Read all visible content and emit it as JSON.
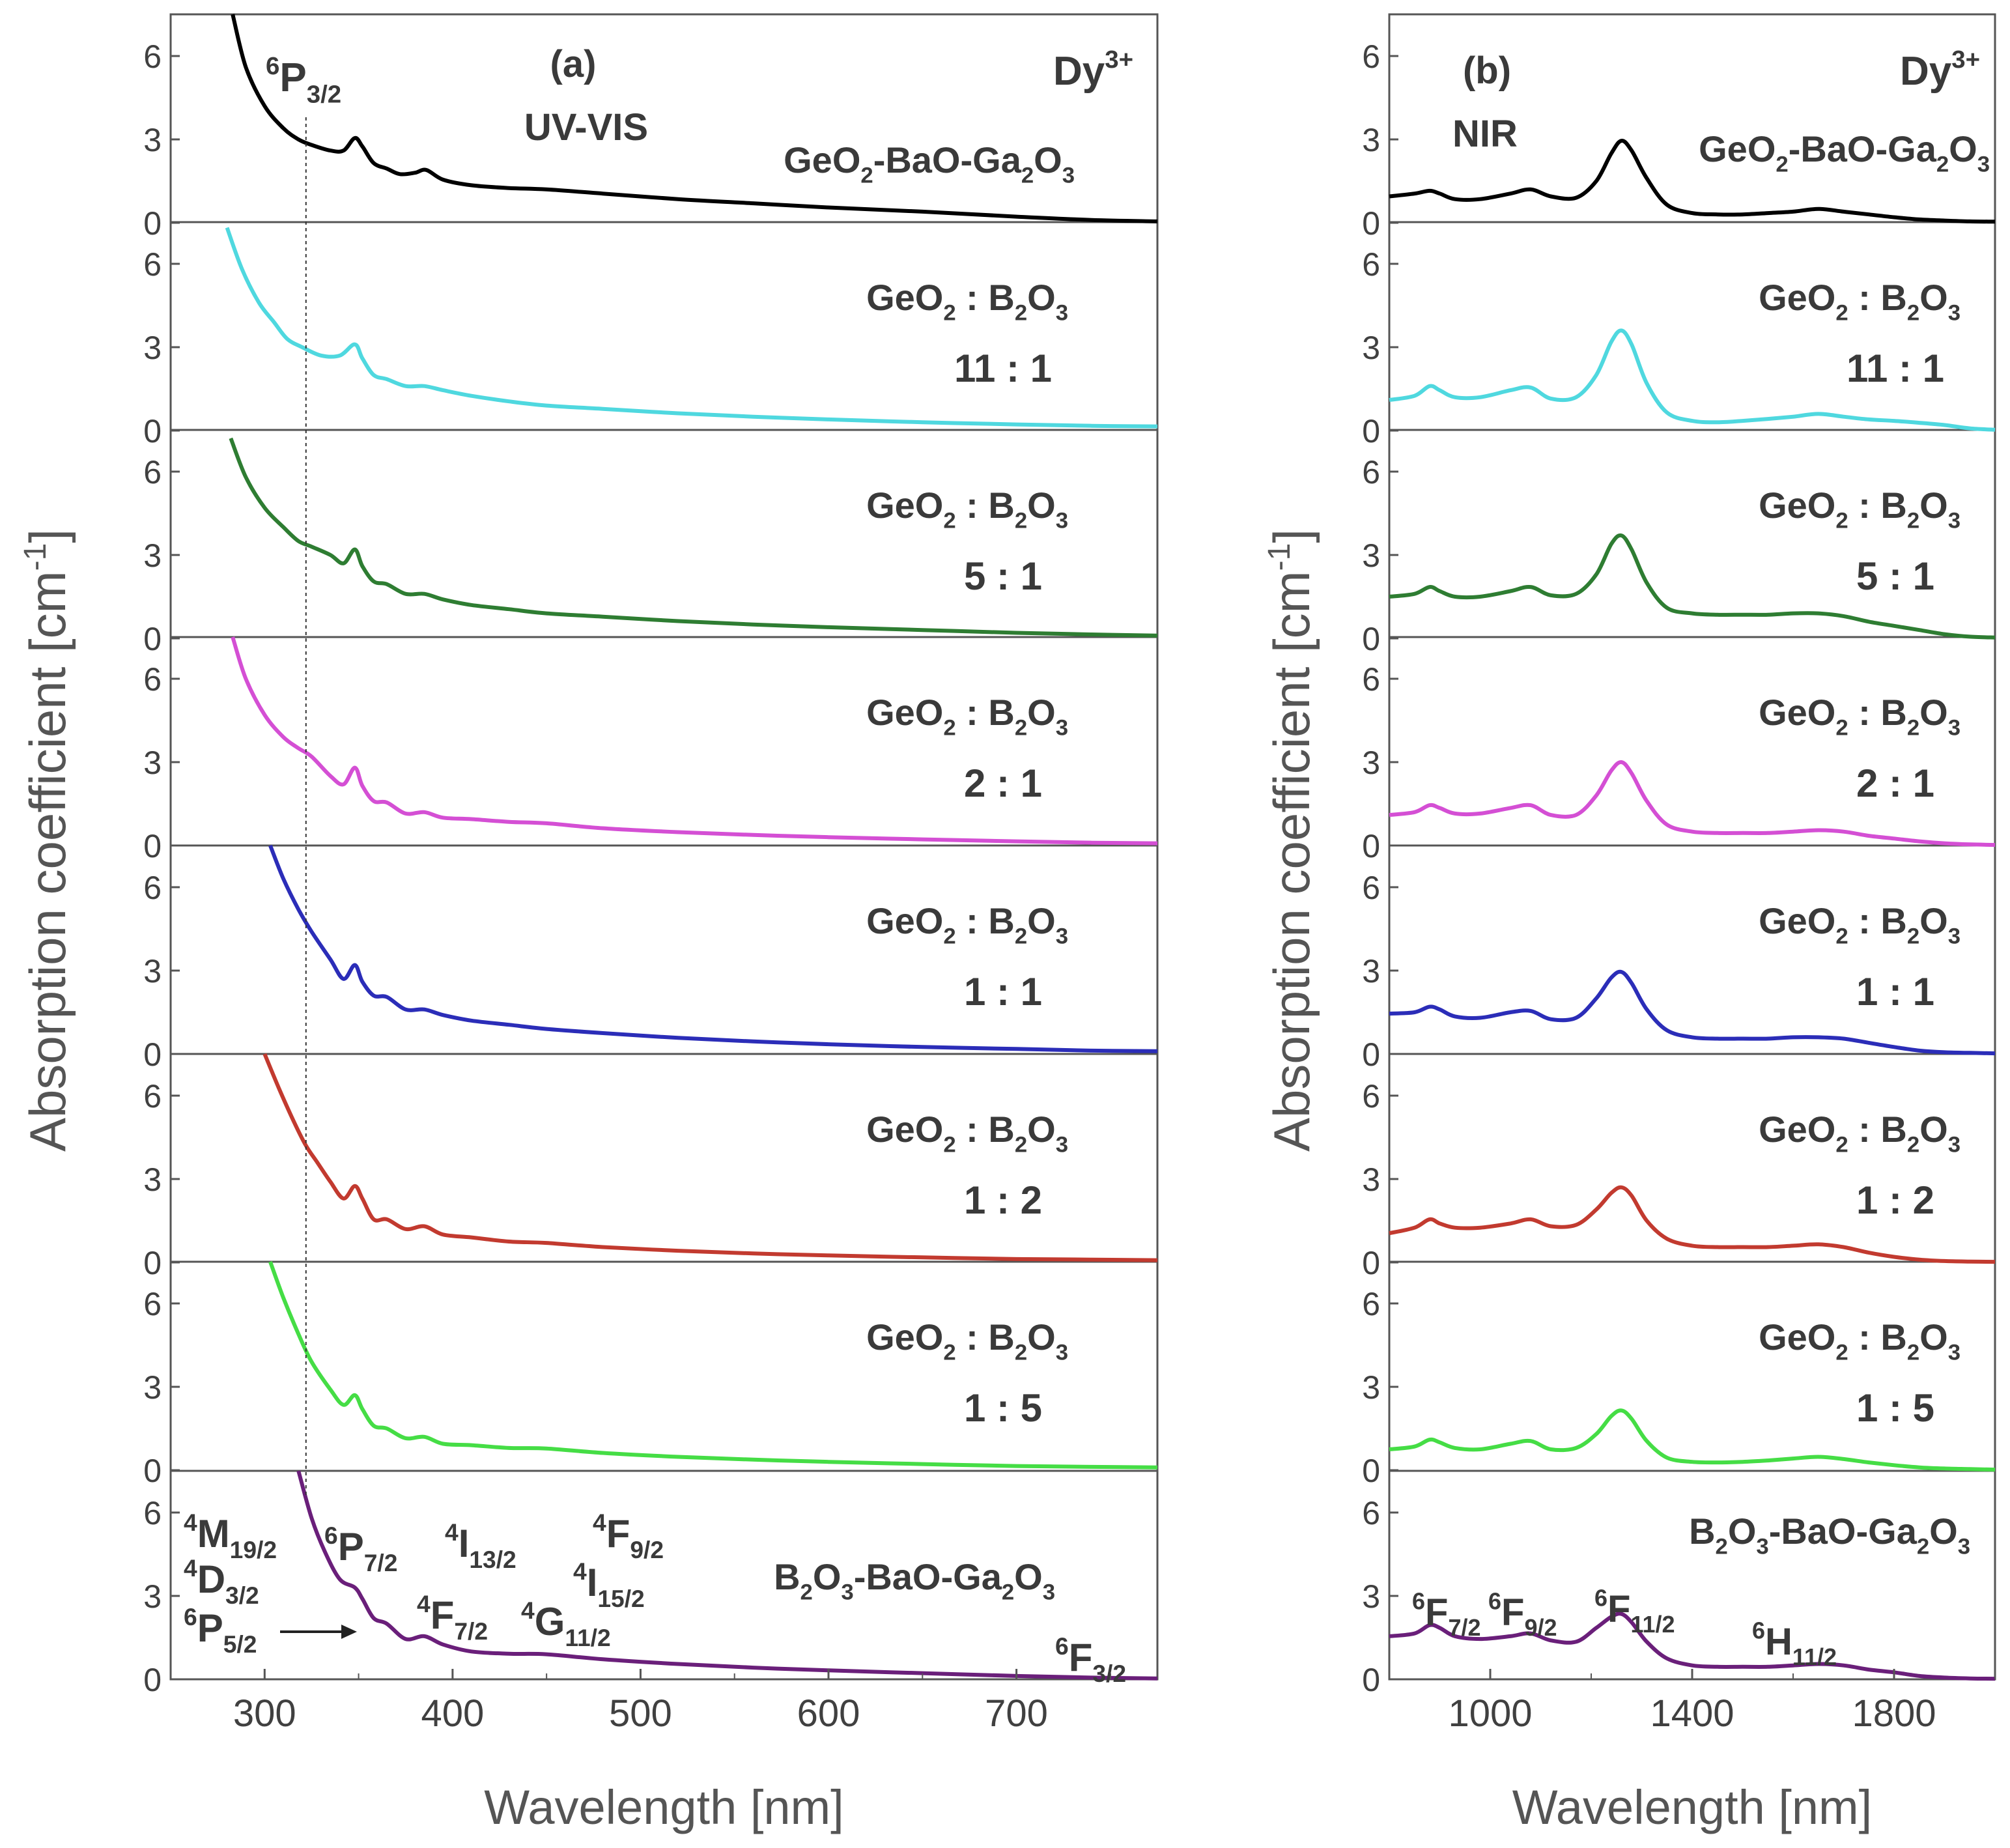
{
  "chart_data": {
    "type": "line",
    "ylabel": "Absorption coefficient",
    "ylabel_unit": "[cm",
    "ylabel_unit_sup": "-1",
    "ylabel_unit_close": "]",
    "panels": [
      {
        "id": "a",
        "label": "(a)",
        "region": "UV-VIS",
        "ion": "Dy",
        "ion_charge": "3+",
        "xlabel": "Wavelength [nm]",
        "xlim": [
          250,
          775
        ],
        "xticks": [
          300,
          400,
          500,
          600,
          700
        ],
        "dashed_marker_x": 322,
        "transitions": [
          {
            "id": "6P32",
            "pre": "6",
            "main": "P",
            "sub": "3/2"
          },
          {
            "id": "4M",
            "pre": "4",
            "main": "M",
            "sub": "19/2"
          },
          {
            "id": "4D",
            "pre": "4",
            "main": "D",
            "sub": "3/2"
          },
          {
            "id": "6P52",
            "pre": "6",
            "main": "P",
            "sub": "5/2"
          },
          {
            "id": "6P72",
            "pre": "6",
            "main": "P",
            "sub": "7/2"
          },
          {
            "id": "4F72",
            "pre": "4",
            "main": "F",
            "sub": "7/2"
          },
          {
            "id": "4I132",
            "pre": "4",
            "main": "I",
            "sub": "13/2"
          },
          {
            "id": "4G",
            "pre": "4",
            "main": "G",
            "sub": "11/2"
          },
          {
            "id": "4I152",
            "pre": "4",
            "main": "I",
            "sub": "15/2"
          },
          {
            "id": "4F92",
            "pre": "4",
            "main": "F",
            "sub": "9/2"
          },
          {
            "id": "6F32",
            "pre": "6",
            "main": "F",
            "sub": "3/2"
          }
        ]
      },
      {
        "id": "b",
        "label": "(b)",
        "region": "NIR",
        "ion": "Dy",
        "ion_charge": "3+",
        "xlabel": "Wavelength [nm]",
        "xlim": [
          800,
          2000
        ],
        "xticks": [
          1000,
          1400,
          1800
        ],
        "transitions": [
          {
            "id": "6F72",
            "pre": "6",
            "main": "F",
            "sub": "7/2"
          },
          {
            "id": "6F92",
            "pre": "6",
            "main": "F",
            "sub": "9/2"
          },
          {
            "id": "6F112",
            "pre": "6",
            "main": "F",
            "sub": "11/2"
          },
          {
            "id": "6H112",
            "pre": "6",
            "main": "H",
            "sub": "11/2"
          }
        ]
      }
    ],
    "y_per_row": {
      "ylim": [
        0,
        7.5
      ],
      "yticks": [
        0,
        3,
        6
      ]
    },
    "glass_label": {
      "left": "GeO",
      "left_sub": "2",
      "sep": " : ",
      "right": "B",
      "right_sub1": "2",
      "right_mid": "O",
      "right_sub2": "3"
    },
    "series": [
      {
        "name": "GeO2-BaO-Ga2O3",
        "color": "#000000",
        "label_parts": [
          "GeO",
          "2",
          "-BaO-Ga",
          "2",
          "O",
          "3"
        ],
        "ratio": "",
        "uv_x": [
          283,
          290,
          300,
          310,
          318,
          325,
          335,
          342,
          348,
          352,
          358,
          365,
          372,
          380,
          386,
          395,
          410,
          430,
          450,
          480,
          520,
          560,
          600,
          650,
          700,
          740,
          775
        ],
        "uv_y": [
          7.5,
          5.6,
          4.2,
          3.4,
          3.0,
          2.8,
          2.6,
          2.6,
          3.05,
          2.75,
          2.15,
          1.95,
          1.75,
          1.8,
          1.9,
          1.55,
          1.35,
          1.25,
          1.2,
          1.05,
          0.85,
          0.7,
          0.55,
          0.4,
          0.22,
          0.1,
          0.05
        ],
        "nir_x": [
          800,
          850,
          880,
          900,
          930,
          980,
          1040,
          1080,
          1120,
          1170,
          1210,
          1240,
          1260,
          1280,
          1310,
          1350,
          1400,
          1450,
          1500,
          1550,
          1600,
          1650,
          1700,
          1750,
          1800,
          1850,
          1900,
          1950,
          2000
        ],
        "nir_y": [
          0.95,
          1.05,
          1.15,
          1.05,
          0.85,
          0.85,
          1.05,
          1.2,
          0.95,
          0.9,
          1.5,
          2.5,
          2.95,
          2.6,
          1.6,
          0.65,
          0.35,
          0.3,
          0.3,
          0.35,
          0.4,
          0.5,
          0.4,
          0.3,
          0.2,
          0.12,
          0.08,
          0.05,
          0.04
        ]
      },
      {
        "name": "GeO2 : B2O3 11:1",
        "color": "#4fd8df",
        "ratio": "11 : 1",
        "uv_x": [
          280,
          288,
          297,
          305,
          312,
          320,
          330,
          340,
          348,
          352,
          358,
          365,
          375,
          385,
          395,
          410,
          430,
          450,
          480,
          520,
          560,
          600,
          650,
          700,
          740,
          775
        ],
        "uv_y": [
          7.3,
          5.8,
          4.6,
          3.9,
          3.3,
          3.0,
          2.7,
          2.7,
          3.1,
          2.6,
          2.0,
          1.85,
          1.6,
          1.6,
          1.45,
          1.25,
          1.05,
          0.9,
          0.78,
          0.62,
          0.5,
          0.4,
          0.3,
          0.22,
          0.17,
          0.15
        ],
        "nir_x": [
          800,
          850,
          880,
          900,
          930,
          980,
          1040,
          1080,
          1120,
          1170,
          1210,
          1240,
          1260,
          1280,
          1310,
          1350,
          1400,
          1450,
          1500,
          1550,
          1600,
          1650,
          1700,
          1750,
          1800,
          1850,
          1900,
          1950,
          2000
        ],
        "nir_y": [
          1.1,
          1.25,
          1.6,
          1.45,
          1.2,
          1.2,
          1.45,
          1.55,
          1.15,
          1.2,
          2.0,
          3.2,
          3.6,
          3.1,
          1.7,
          0.65,
          0.35,
          0.3,
          0.35,
          0.42,
          0.5,
          0.6,
          0.5,
          0.4,
          0.35,
          0.28,
          0.2,
          0.08,
          0.03
        ]
      },
      {
        "name": "GeO2 : B2O3 5:1",
        "color": "#2e7d32",
        "ratio": "5 : 1",
        "uv_x": [
          282,
          290,
          300,
          310,
          318,
          325,
          335,
          342,
          348,
          352,
          358,
          365,
          375,
          385,
          395,
          410,
          430,
          450,
          480,
          520,
          560,
          600,
          650,
          700,
          740,
          775
        ],
        "uv_y": [
          7.2,
          5.8,
          4.7,
          4.0,
          3.5,
          3.3,
          3.0,
          2.7,
          3.2,
          2.6,
          2.05,
          1.95,
          1.6,
          1.6,
          1.4,
          1.2,
          1.05,
          0.9,
          0.78,
          0.62,
          0.5,
          0.4,
          0.3,
          0.2,
          0.14,
          0.1
        ],
        "nir_x": [
          800,
          850,
          880,
          900,
          930,
          980,
          1040,
          1080,
          1120,
          1170,
          1210,
          1240,
          1260,
          1280,
          1310,
          1350,
          1400,
          1450,
          1500,
          1550,
          1600,
          1650,
          1700,
          1750,
          1800,
          1850,
          1900,
          1950,
          2000
        ],
        "nir_y": [
          1.5,
          1.6,
          1.85,
          1.7,
          1.5,
          1.5,
          1.7,
          1.85,
          1.55,
          1.6,
          2.3,
          3.4,
          3.7,
          3.2,
          2.0,
          1.1,
          0.9,
          0.85,
          0.85,
          0.85,
          0.9,
          0.9,
          0.8,
          0.6,
          0.45,
          0.3,
          0.15,
          0.06,
          0.03
        ]
      },
      {
        "name": "GeO2 : B2O3 2:1",
        "color": "#d44fd4",
        "ratio": "2 : 1",
        "uv_x": [
          283,
          290,
          300,
          310,
          318,
          325,
          335,
          342,
          348,
          352,
          358,
          365,
          375,
          385,
          395,
          410,
          430,
          450,
          480,
          520,
          560,
          600,
          650,
          700,
          740,
          775
        ],
        "uv_y": [
          7.5,
          6.0,
          4.7,
          3.9,
          3.5,
          3.2,
          2.5,
          2.2,
          2.8,
          2.15,
          1.6,
          1.55,
          1.15,
          1.2,
          1.0,
          0.95,
          0.85,
          0.8,
          0.62,
          0.48,
          0.38,
          0.3,
          0.22,
          0.15,
          0.1,
          0.08
        ],
        "nir_x": [
          800,
          850,
          880,
          900,
          930,
          980,
          1040,
          1080,
          1120,
          1170,
          1210,
          1240,
          1260,
          1280,
          1310,
          1350,
          1400,
          1450,
          1500,
          1550,
          1600,
          1650,
          1700,
          1750,
          1800,
          1850,
          1900,
          1950,
          2000
        ],
        "nir_y": [
          1.1,
          1.2,
          1.45,
          1.35,
          1.15,
          1.15,
          1.35,
          1.45,
          1.1,
          1.1,
          1.8,
          2.7,
          3.0,
          2.6,
          1.6,
          0.75,
          0.5,
          0.45,
          0.45,
          0.45,
          0.5,
          0.55,
          0.5,
          0.35,
          0.25,
          0.15,
          0.08,
          0.04,
          0.02
        ]
      },
      {
        "name": "GeO2 : B2O3 1:1",
        "color": "#2b2db8",
        "ratio": "1 : 1",
        "uv_x": [
          303,
          310,
          318,
          325,
          335,
          342,
          348,
          352,
          358,
          365,
          375,
          385,
          395,
          410,
          430,
          450,
          480,
          520,
          560,
          600,
          650,
          700,
          740,
          775
        ],
        "uv_y": [
          7.5,
          6.3,
          5.2,
          4.4,
          3.4,
          2.7,
          3.2,
          2.6,
          2.1,
          2.05,
          1.6,
          1.6,
          1.4,
          1.2,
          1.05,
          0.9,
          0.75,
          0.58,
          0.45,
          0.35,
          0.25,
          0.18,
          0.12,
          0.1
        ],
        "nir_x": [
          800,
          850,
          880,
          900,
          930,
          980,
          1040,
          1080,
          1120,
          1170,
          1210,
          1240,
          1260,
          1280,
          1310,
          1350,
          1400,
          1450,
          1500,
          1550,
          1600,
          1650,
          1700,
          1750,
          1800,
          1850,
          1900,
          1950,
          2000
        ],
        "nir_y": [
          1.45,
          1.5,
          1.7,
          1.6,
          1.35,
          1.3,
          1.5,
          1.55,
          1.25,
          1.3,
          2.0,
          2.75,
          2.95,
          2.55,
          1.6,
          0.85,
          0.6,
          0.55,
          0.55,
          0.55,
          0.6,
          0.6,
          0.55,
          0.4,
          0.25,
          0.12,
          0.06,
          0.04,
          0.02
        ]
      },
      {
        "name": "GeO2 : B2O3 1:2",
        "color": "#c23a2f",
        "ratio": "1 : 2",
        "uv_x": [
          300,
          308,
          316,
          322,
          328,
          335,
          342,
          348,
          352,
          358,
          365,
          375,
          385,
          395,
          410,
          430,
          450,
          480,
          520,
          560,
          600,
          650,
          700,
          740,
          775
        ],
        "uv_y": [
          7.5,
          6.2,
          5.0,
          4.2,
          3.6,
          2.9,
          2.3,
          2.75,
          2.3,
          1.55,
          1.55,
          1.2,
          1.3,
          1.0,
          0.9,
          0.75,
          0.7,
          0.55,
          0.42,
          0.32,
          0.25,
          0.18,
          0.12,
          0.1,
          0.08
        ],
        "nir_x": [
          800,
          850,
          880,
          900,
          930,
          980,
          1040,
          1080,
          1120,
          1170,
          1210,
          1240,
          1260,
          1280,
          1310,
          1350,
          1400,
          1450,
          1500,
          1550,
          1600,
          1650,
          1700,
          1750,
          1800,
          1850,
          1900,
          1950,
          2000
        ],
        "nir_y": [
          1.05,
          1.25,
          1.55,
          1.4,
          1.25,
          1.25,
          1.4,
          1.55,
          1.3,
          1.35,
          1.9,
          2.5,
          2.7,
          2.4,
          1.5,
          0.85,
          0.6,
          0.55,
          0.55,
          0.55,
          0.6,
          0.65,
          0.55,
          0.35,
          0.2,
          0.1,
          0.05,
          0.03,
          0.02
        ]
      },
      {
        "name": "GeO2 : B2O3 1:5",
        "color": "#45dd45",
        "ratio": "1 : 5",
        "uv_x": [
          303,
          310,
          318,
          325,
          335,
          342,
          348,
          352,
          358,
          365,
          375,
          385,
          395,
          410,
          430,
          450,
          480,
          520,
          560,
          600,
          650,
          700,
          740,
          775
        ],
        "uv_y": [
          7.5,
          6.2,
          4.9,
          3.9,
          2.9,
          2.35,
          2.7,
          2.2,
          1.6,
          1.5,
          1.15,
          1.2,
          0.95,
          0.9,
          0.8,
          0.78,
          0.62,
          0.48,
          0.38,
          0.3,
          0.22,
          0.15,
          0.12,
          0.1
        ],
        "nir_x": [
          800,
          850,
          880,
          900,
          930,
          980,
          1040,
          1080,
          1120,
          1170,
          1210,
          1240,
          1260,
          1280,
          1310,
          1350,
          1400,
          1450,
          1500,
          1550,
          1600,
          1650,
          1700,
          1750,
          1800,
          1850,
          1900,
          1950,
          2000
        ],
        "nir_y": [
          0.75,
          0.85,
          1.1,
          1.0,
          0.8,
          0.75,
          0.95,
          1.05,
          0.75,
          0.8,
          1.3,
          1.95,
          2.15,
          1.85,
          1.05,
          0.45,
          0.3,
          0.28,
          0.3,
          0.35,
          0.42,
          0.48,
          0.4,
          0.28,
          0.18,
          0.1,
          0.06,
          0.04,
          0.02
        ]
      },
      {
        "name": "B2O3-BaO-Ga2O3",
        "color": "#6a1f7a",
        "label_parts": [
          "B",
          "2",
          "O",
          "3",
          "-BaO-Ga",
          "2",
          "O",
          "3"
        ],
        "ratio": "",
        "uv_x": [
          318,
          325,
          332,
          340,
          348,
          352,
          358,
          365,
          375,
          385,
          395,
          410,
          430,
          450,
          480,
          520,
          560,
          600,
          650,
          700,
          740,
          775
        ],
        "uv_y": [
          7.5,
          5.8,
          4.6,
          3.6,
          3.3,
          2.9,
          2.2,
          2.0,
          1.45,
          1.55,
          1.25,
          1.0,
          0.92,
          0.9,
          0.72,
          0.55,
          0.42,
          0.32,
          0.22,
          0.12,
          0.06,
          0.03
        ],
        "nir_x": [
          800,
          850,
          880,
          900,
          930,
          980,
          1040,
          1080,
          1120,
          1170,
          1210,
          1240,
          1260,
          1280,
          1310,
          1350,
          1400,
          1450,
          1500,
          1550,
          1600,
          1650,
          1700,
          1750,
          1800,
          1850,
          1900,
          1950,
          2000
        ],
        "nir_y": [
          1.55,
          1.65,
          1.95,
          1.85,
          1.55,
          1.45,
          1.55,
          1.65,
          1.4,
          1.35,
          1.85,
          2.25,
          2.35,
          2.05,
          1.35,
          0.75,
          0.5,
          0.45,
          0.45,
          0.45,
          0.5,
          0.55,
          0.5,
          0.35,
          0.25,
          0.12,
          0.06,
          0.03,
          0.02
        ]
      }
    ]
  }
}
